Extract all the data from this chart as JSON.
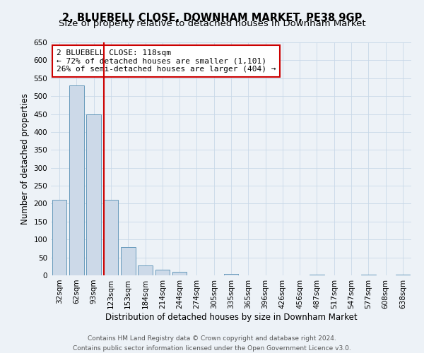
{
  "title": "2, BLUEBELL CLOSE, DOWNHAM MARKET, PE38 9GP",
  "subtitle": "Size of property relative to detached houses in Downham Market",
  "xlabel": "Distribution of detached houses by size in Downham Market",
  "ylabel": "Number of detached properties",
  "bar_labels": [
    "32sqm",
    "62sqm",
    "93sqm",
    "123sqm",
    "153sqm",
    "184sqm",
    "214sqm",
    "244sqm",
    "274sqm",
    "305sqm",
    "335sqm",
    "365sqm",
    "396sqm",
    "426sqm",
    "456sqm",
    "487sqm",
    "517sqm",
    "547sqm",
    "577sqm",
    "608sqm",
    "638sqm"
  ],
  "bar_values": [
    210,
    530,
    450,
    210,
    78,
    28,
    15,
    10,
    0,
    0,
    3,
    0,
    0,
    0,
    0,
    1,
    0,
    0,
    1,
    0,
    1
  ],
  "bar_color": "#ccd9e8",
  "bar_edgecolor": "#6699bb",
  "bar_linewidth": 0.7,
  "vline_color": "#cc0000",
  "vline_linewidth": 1.5,
  "vline_x_index": 2.575,
  "annotation_title": "2 BLUEBELL CLOSE: 118sqm",
  "annotation_line1": "← 72% of detached houses are smaller (1,101)",
  "annotation_line2": "26% of semi-detached houses are larger (404) →",
  "annotation_box_edgecolor": "#cc0000",
  "annotation_box_facecolor": "#ffffff",
  "ylim": [
    0,
    650
  ],
  "yticks": [
    0,
    50,
    100,
    150,
    200,
    250,
    300,
    350,
    400,
    450,
    500,
    550,
    600,
    650
  ],
  "grid_color": "#c8d8e8",
  "background_color": "#edf2f7",
  "footer_line1": "Contains HM Land Registry data © Crown copyright and database right 2024.",
  "footer_line2": "Contains public sector information licensed under the Open Government Licence v3.0.",
  "title_fontsize": 10.5,
  "subtitle_fontsize": 9.5,
  "xlabel_fontsize": 8.5,
  "ylabel_fontsize": 8.5,
  "tick_fontsize": 7.5,
  "annotation_fontsize": 8,
  "footer_fontsize": 6.5
}
